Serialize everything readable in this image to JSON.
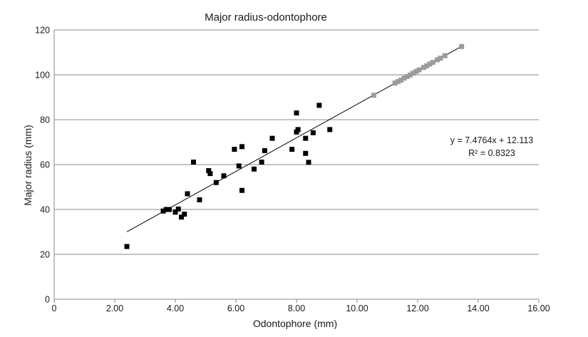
{
  "chart_data": {
    "type": "scatter",
    "title": "Major radius-odontophore",
    "xlabel": "Odontophore (mm)",
    "ylabel": "Major radius (mm)",
    "xlim": [
      0,
      16
    ],
    "ylim": [
      0,
      120
    ],
    "x_ticks": [
      "0",
      "2.00",
      "4.00",
      "6.00",
      "8.00",
      "10.00",
      "12.00",
      "14.00",
      "16.00"
    ],
    "y_ticks": [
      "0",
      "20",
      "40",
      "60",
      "80",
      "100",
      "120"
    ],
    "grid": "horizontal",
    "legend": "none",
    "series": [
      {
        "color": "#000000",
        "marker": "square",
        "points": [
          [
            2.4,
            23.5
          ],
          [
            3.6,
            39.3
          ],
          [
            3.7,
            40.0
          ],
          [
            3.8,
            40.0
          ],
          [
            4.0,
            38.8
          ],
          [
            4.1,
            40.2
          ],
          [
            4.2,
            36.6
          ],
          [
            4.3,
            37.9
          ],
          [
            4.4,
            47.0
          ],
          [
            4.6,
            61.1
          ],
          [
            4.8,
            44.3
          ],
          [
            5.1,
            57.3
          ],
          [
            5.15,
            56.0
          ],
          [
            5.35,
            52.0
          ],
          [
            5.6,
            55.0
          ],
          [
            5.95,
            66.8
          ],
          [
            6.1,
            59.4
          ],
          [
            6.2,
            68.0
          ],
          [
            6.2,
            48.5
          ],
          [
            6.6,
            58.0
          ],
          [
            6.85,
            61.1
          ],
          [
            6.95,
            66.2
          ],
          [
            7.2,
            71.7
          ],
          [
            7.85,
            66.8
          ],
          [
            8.0,
            74.5
          ],
          [
            8.0,
            83.0
          ],
          [
            8.05,
            75.6
          ],
          [
            8.3,
            71.7
          ],
          [
            8.3,
            65.0
          ],
          [
            8.4,
            61.0
          ],
          [
            8.55,
            74.2
          ],
          [
            8.75,
            86.4
          ],
          [
            9.1,
            75.6
          ]
        ]
      },
      {
        "color": "#9b9b9b",
        "marker": "square",
        "points": [
          [
            10.55,
            90.9
          ],
          [
            11.25,
            96.3
          ],
          [
            11.35,
            97.0
          ],
          [
            11.45,
            97.6
          ],
          [
            11.55,
            98.5
          ],
          [
            11.65,
            99.2
          ],
          [
            11.75,
            99.9
          ],
          [
            11.85,
            100.7
          ],
          [
            11.95,
            101.5
          ],
          [
            12.05,
            102.2
          ],
          [
            12.2,
            103.3
          ],
          [
            12.3,
            104.0
          ],
          [
            12.4,
            104.8
          ],
          [
            12.5,
            105.5
          ],
          [
            12.65,
            106.7
          ],
          [
            12.75,
            107.4
          ],
          [
            12.9,
            108.5
          ],
          [
            13.45,
            112.6
          ]
        ]
      }
    ],
    "trendline": {
      "slope": 7.4764,
      "intercept": 12.113,
      "x_range": [
        2.4,
        13.45
      ],
      "equation": "y = 7.4764x + 12.113",
      "r2_label": "R² = 0.8323"
    }
  }
}
